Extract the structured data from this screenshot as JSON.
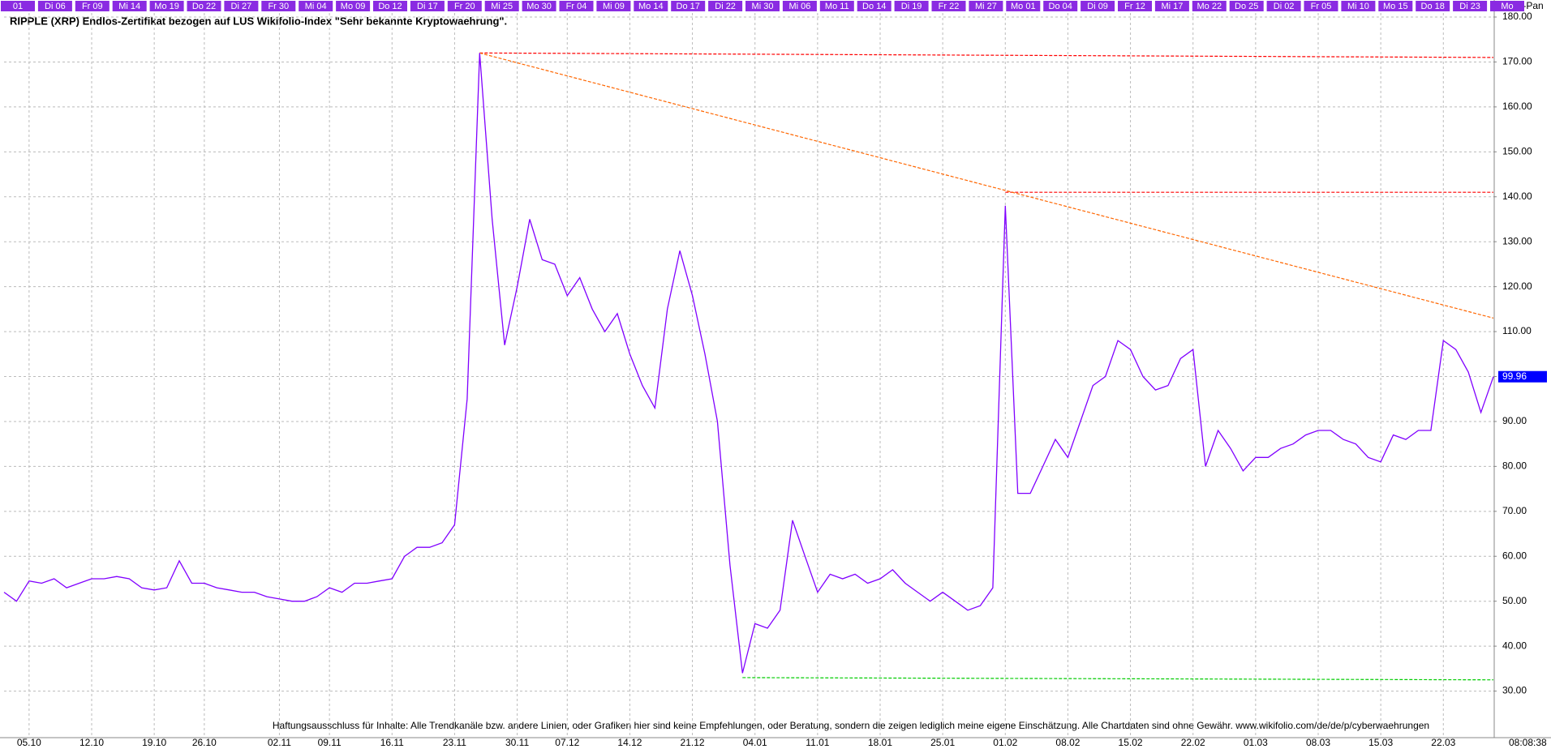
{
  "chart_data": {
    "type": "line",
    "title": "RIPPLE (XRP) Endlos-Zertifikat bezogen auf LUS Wikifolio-Index \"Sehr bekannte Kryptowaehrung\".",
    "copyright": "(c)Tai-Pan",
    "time": "08:08:38",
    "disclaimer": "Haftungsausschluss für Inhalte: Alle Trendkanäle bzw. andere Linien, oder Grafiken hier sind keine Empfehlungen, oder Beratung, sondern die zeigen lediglich meine eigene Einschätzung. Alle Chartdaten sind ohne Gewähr.  www.wikifolio.com/de/de/p/cyberwaehrungen",
    "top_labels": [
      "01",
      "Di 06",
      "Fr 09",
      "Mi 14",
      "Mo 19",
      "Do 22",
      "Di 27",
      "Fr 30",
      "Mi 04",
      "Mo 09",
      "Do 12",
      "Di 17",
      "Fr 20",
      "Mi 25",
      "Mo 30",
      "Fr 04",
      "Mi 09",
      "Mo 14",
      "Do 17",
      "Di 22",
      "Mi 30",
      "Mi 06",
      "Mo 11",
      "Do 14",
      "Di 19",
      "Fr 22",
      "Mi 27",
      "Mo 01",
      "Do 04",
      "Di 09",
      "Fr 12",
      "Mi 17",
      "Mo 22",
      "Do 25",
      "Di 02",
      "Fr 05",
      "Mi 10",
      "Mo 15",
      "Do 18",
      "Di 23",
      "Mo"
    ],
    "categories": [
      null,
      null,
      "05.10",
      null,
      null,
      null,
      null,
      "12.10",
      null,
      null,
      null,
      null,
      "19.10",
      null,
      null,
      null,
      "26.10",
      null,
      null,
      null,
      null,
      null,
      "02.11",
      null,
      null,
      null,
      "09.11",
      null,
      null,
      null,
      null,
      "16.11",
      null,
      null,
      null,
      null,
      "23.11",
      null,
      null,
      null,
      null,
      "30.11",
      null,
      null,
      null,
      "07.12",
      null,
      null,
      null,
      null,
      "14.12",
      null,
      null,
      null,
      null,
      "21.12",
      null,
      null,
      null,
      null,
      "04.01",
      null,
      null,
      null,
      null,
      "11.01",
      null,
      null,
      null,
      null,
      "18.01",
      null,
      null,
      null,
      null,
      "25.01",
      null,
      null,
      null,
      null,
      "01.02",
      null,
      null,
      null,
      null,
      "08.02",
      null,
      null,
      null,
      null,
      "15.02",
      null,
      null,
      null,
      null,
      "22.02",
      null,
      null,
      null,
      null,
      "01.03",
      null,
      null,
      null,
      null,
      "08.03",
      null,
      null,
      null,
      null,
      "15.03",
      null,
      null,
      null,
      null,
      "22.03",
      null,
      null,
      null,
      null
    ],
    "series": [
      {
        "color": "#8000ff",
        "values": [
          52,
          50,
          54.5,
          54,
          55,
          53,
          54,
          55,
          55,
          55.5,
          55,
          53,
          52.5,
          53,
          59,
          54,
          54,
          53,
          52.5,
          52,
          52,
          51,
          50.5,
          50,
          50,
          51,
          53,
          52,
          54,
          54,
          54.5,
          55,
          60,
          62,
          62,
          63,
          67,
          95,
          172,
          135,
          107,
          120,
          135,
          126,
          125,
          118,
          122,
          115,
          110,
          114,
          105,
          98,
          93,
          115,
          128,
          118,
          105,
          90,
          58,
          34,
          45,
          44,
          48,
          68,
          60,
          52,
          56,
          55,
          56,
          54,
          55,
          57,
          54,
          52,
          50,
          52,
          50,
          48,
          49,
          53,
          138,
          74,
          74,
          80,
          86,
          82,
          90,
          98,
          100,
          108,
          106,
          100,
          97,
          98,
          104,
          106,
          80,
          88,
          84,
          79,
          82,
          82,
          84,
          85,
          87,
          88,
          88,
          86,
          85,
          82,
          81,
          87,
          86,
          88,
          88,
          108,
          106,
          101,
          92,
          99.96
        ]
      }
    ],
    "trend_lines": [
      {
        "color": "#ff0000",
        "x": [
          38,
          119
        ],
        "y": [
          172,
          171
        ]
      },
      {
        "color": "#ff0000",
        "x": [
          80,
          119
        ],
        "y": [
          141,
          141
        ]
      },
      {
        "color": "#00cc00",
        "x": [
          59,
          119
        ],
        "y": [
          33,
          32.5
        ]
      },
      {
        "color": "#ff6600",
        "x": [
          38,
          119
        ],
        "y": [
          172,
          113
        ]
      }
    ],
    "ylim": [
      20,
      180
    ],
    "yticks": [
      {
        "value": 30,
        "label": "30.00"
      },
      {
        "value": 40,
        "label": "40.00"
      },
      {
        "value": 50,
        "label": "50.00"
      },
      {
        "value": 60,
        "label": "60.00"
      },
      {
        "value": 70,
        "label": "70.00"
      },
      {
        "value": 80,
        "label": "80.00"
      },
      {
        "value": 90,
        "label": "90.00"
      },
      {
        "value": 100,
        "label": "100.00"
      },
      {
        "value": 110,
        "label": "110.00"
      },
      {
        "value": 120,
        "label": "120.00"
      },
      {
        "value": 130,
        "label": "130.00"
      },
      {
        "value": 140,
        "label": "140.00"
      },
      {
        "value": 150,
        "label": "150.00"
      },
      {
        "value": 160,
        "label": "160.00"
      },
      {
        "value": 170,
        "label": "170.00"
      },
      {
        "value": 180,
        "label": "180.00"
      }
    ],
    "grid": true,
    "label_color": "#8a2be2",
    "price_tag_color": "#0000ff"
  }
}
